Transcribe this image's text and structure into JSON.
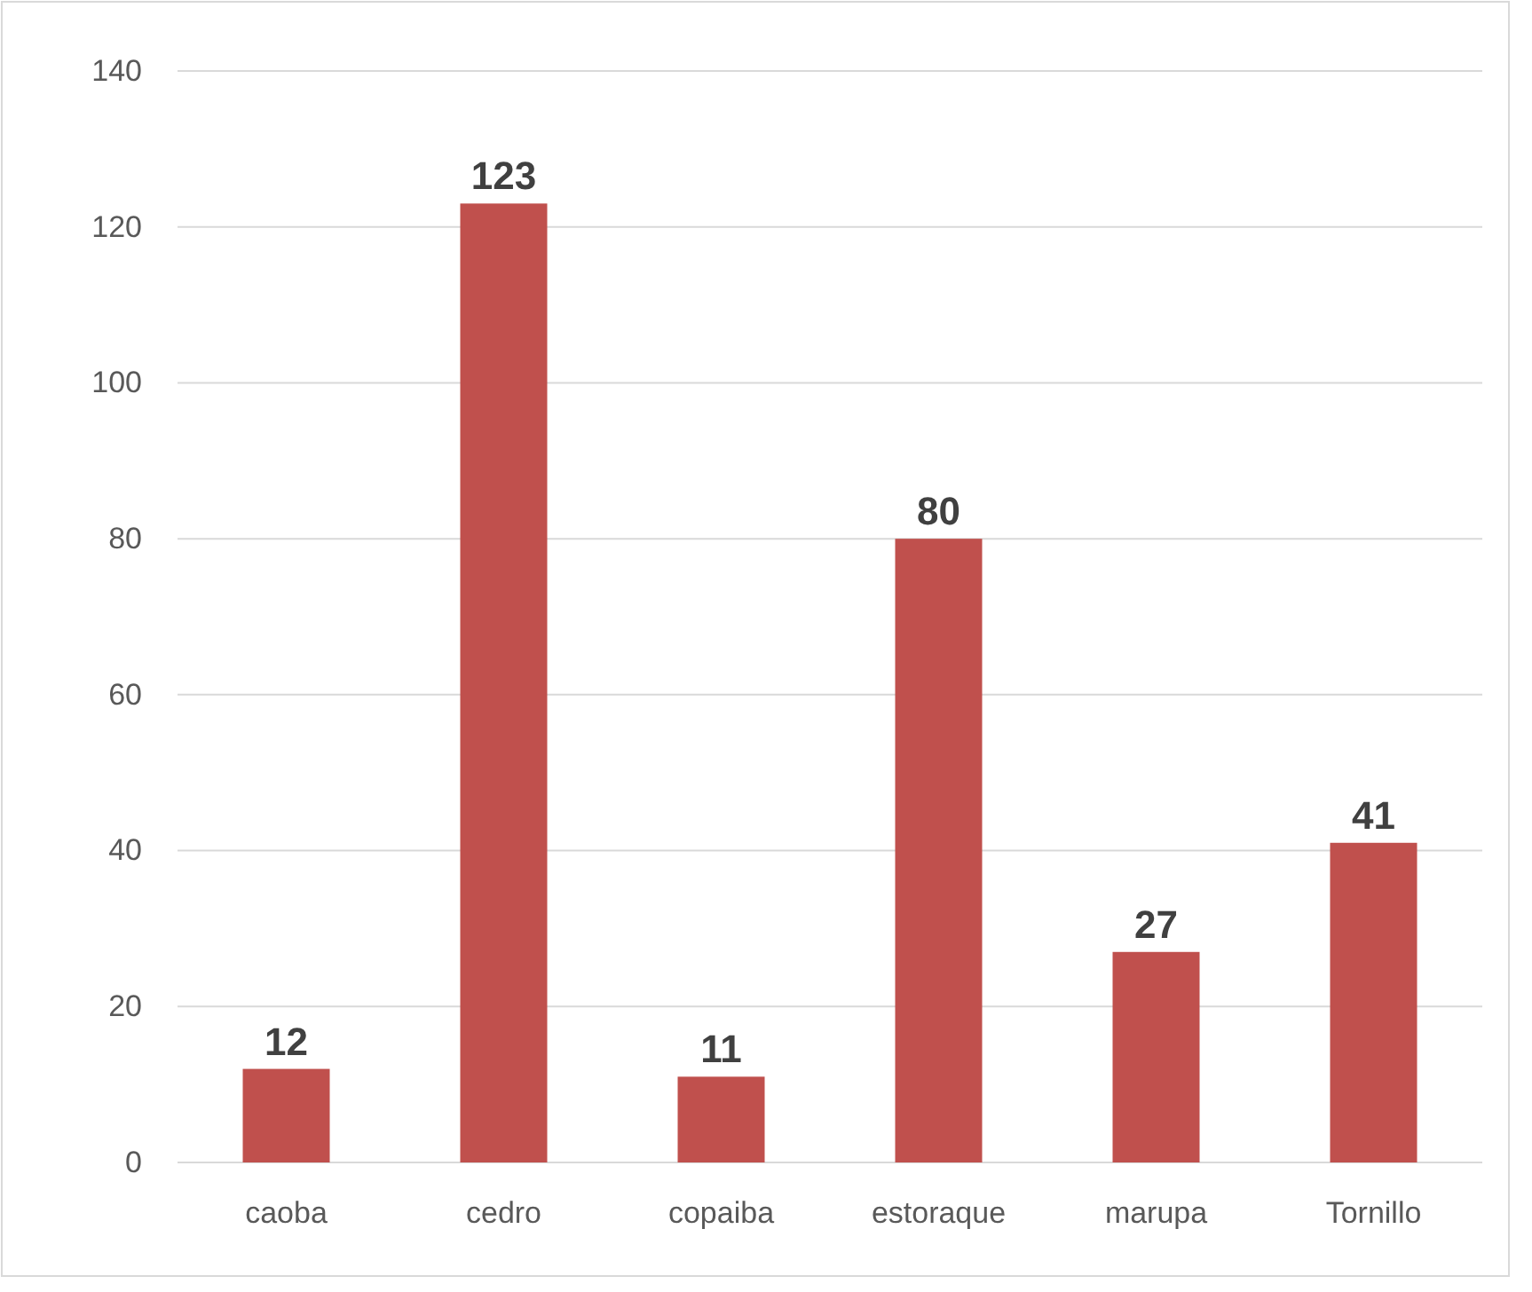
{
  "chart_data": {
    "type": "bar",
    "categories": [
      "caoba",
      "cedro",
      "copaiba",
      "estoraque",
      "marupa",
      "Tornillo"
    ],
    "values": [
      12,
      123,
      11,
      80,
      27,
      41
    ],
    "color": "#c0504d",
    "ylim": [
      0,
      140
    ],
    "yticks": [
      0,
      20,
      40,
      60,
      80,
      100,
      120,
      140
    ],
    "grid": "y",
    "data_labels": true
  }
}
